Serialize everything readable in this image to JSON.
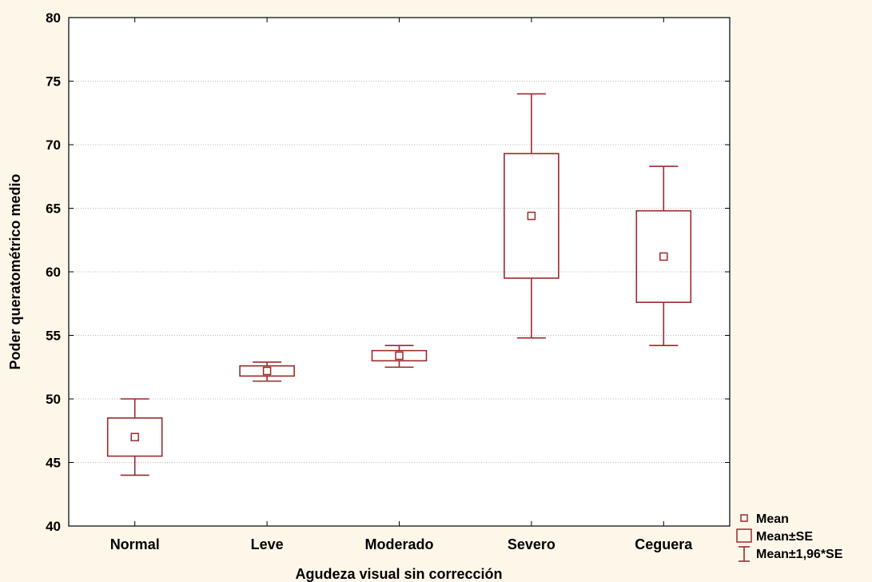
{
  "chart_data": {
    "type": "box",
    "xlabel": "Agudeza visual sin corrección",
    "ylabel": "Poder queratométrico medio",
    "ylim": [
      40,
      80
    ],
    "yticks": [
      40,
      45,
      50,
      55,
      60,
      65,
      70,
      75,
      80
    ],
    "grid": true,
    "legend_position": "bottom-right",
    "categories": [
      "Normal",
      "Leve",
      "Moderado",
      "Severo",
      "Ceguera"
    ],
    "series": [
      {
        "name": "Mean",
        "values": [
          47.0,
          52.2,
          53.4,
          64.4,
          61.2
        ]
      },
      {
        "name": "Mean±SE",
        "low": [
          45.5,
          51.8,
          53.0,
          59.5,
          57.6
        ],
        "high": [
          48.5,
          52.6,
          53.8,
          69.3,
          64.8
        ]
      },
      {
        "name": "Mean±1,96*SE",
        "low": [
          44.0,
          51.4,
          52.5,
          54.8,
          54.2
        ],
        "high": [
          50.0,
          52.9,
          54.2,
          74.0,
          68.3
        ]
      }
    ],
    "colors": {
      "series": "#9b2a2a",
      "grid": "#b8b8b8",
      "plot_bg": "#ffffff",
      "page_bg": "#fdf7ea"
    }
  }
}
